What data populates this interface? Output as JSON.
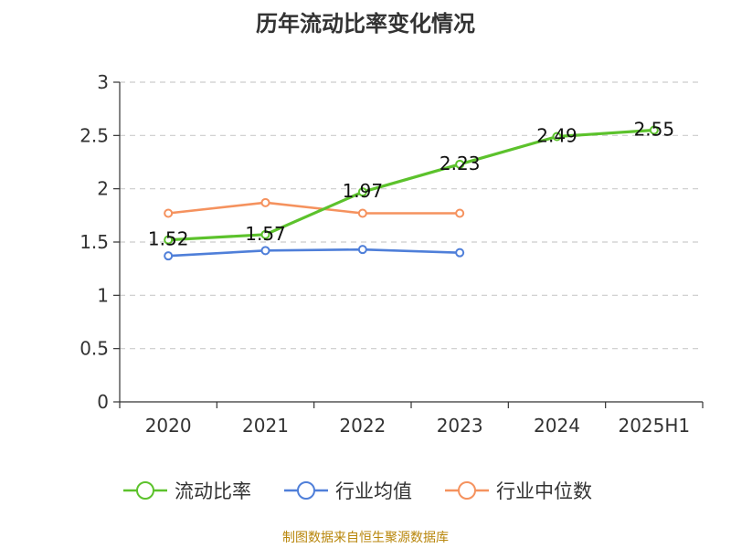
{
  "chart_data": {
    "type": "line",
    "title": "历年流动比率变化情况",
    "categories": [
      "2020",
      "2021",
      "2022",
      "2023",
      "2024",
      "2025H1"
    ],
    "ylim": [
      0,
      3
    ],
    "yticks": [
      0,
      0.5,
      1,
      1.5,
      2,
      2.5,
      3
    ],
    "ytick_labels": [
      "0",
      "0.5",
      "1",
      "1.5",
      "2",
      "2.5",
      "3"
    ],
    "grid": true,
    "legend_position": "bottom",
    "series": [
      {
        "name": "流动比率",
        "color": "#5cc22c",
        "values": [
          1.52,
          1.57,
          1.97,
          2.23,
          2.49,
          2.55
        ],
        "labels": [
          "1.52",
          "1.57",
          "1.97",
          "2.23",
          "2.49",
          "2.55"
        ]
      },
      {
        "name": "行业均值",
        "color": "#4f7fd9",
        "values": [
          1.37,
          1.42,
          1.43,
          1.4,
          null,
          null
        ],
        "labels": []
      },
      {
        "name": "行业中位数",
        "color": "#f5925e",
        "values": [
          1.77,
          1.87,
          1.77,
          1.77,
          null,
          null
        ],
        "labels": []
      }
    ]
  },
  "footer": {
    "source": "制图数据来自恒生聚源数据库"
  }
}
